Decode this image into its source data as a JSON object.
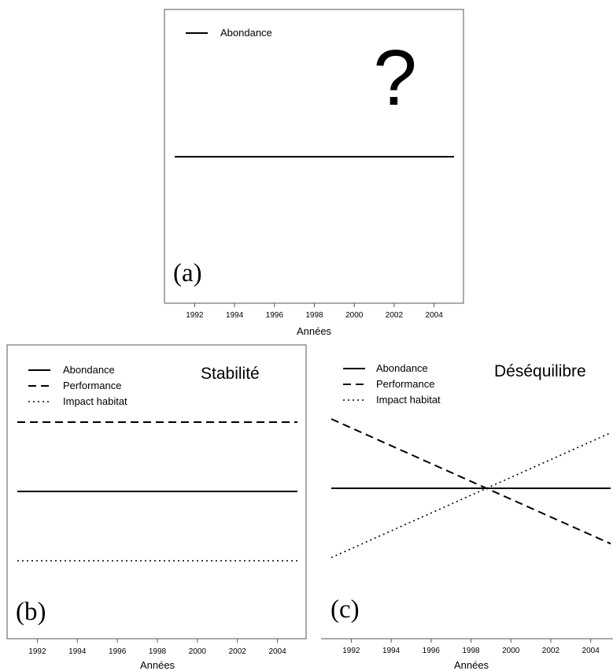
{
  "chart_data": [
    {
      "type": "line",
      "panel_label": "(a)",
      "annotation": "?",
      "title": "",
      "xlabel": "Années",
      "ylabel": "",
      "xlim": [
        1991,
        2005
      ],
      "ylim": [
        0,
        2
      ],
      "xticks": [
        1992,
        1994,
        1996,
        1998,
        2000,
        2002,
        2004
      ],
      "legend_position": "top-left",
      "series": [
        {
          "name": "Abondance",
          "style": "solid",
          "x": [
            1991,
            2005
          ],
          "values": [
            1,
            1
          ]
        }
      ]
    },
    {
      "type": "line",
      "panel_label": "(b)",
      "title": "Stabilité",
      "xlabel": "Années",
      "ylabel": "",
      "xlim": [
        1991,
        2005
      ],
      "ylim": [
        0,
        2
      ],
      "xticks": [
        1992,
        1994,
        1996,
        1998,
        2000,
        2002,
        2004
      ],
      "legend_position": "top-left",
      "series": [
        {
          "name": "Abondance",
          "style": "solid",
          "x": [
            1991,
            2005
          ],
          "values": [
            1,
            1
          ]
        },
        {
          "name": "Performance",
          "style": "dashed",
          "x": [
            1991,
            2005
          ],
          "values": [
            1.5,
            1.5
          ]
        },
        {
          "name": "Impact habitat",
          "style": "dotted",
          "x": [
            1991,
            2005
          ],
          "values": [
            0.5,
            0.5
          ]
        }
      ]
    },
    {
      "type": "line",
      "panel_label": "(c)",
      "title": "Déséquilibre",
      "xlabel": "Années",
      "ylabel": "",
      "xlim": [
        1991,
        2005
      ],
      "ylim": [
        0,
        2
      ],
      "xticks": [
        1992,
        1994,
        1996,
        1998,
        2000,
        2002,
        2004
      ],
      "legend_position": "top-left",
      "series": [
        {
          "name": "Abondance",
          "style": "solid",
          "x": [
            1991,
            2005
          ],
          "values": [
            1,
            1
          ]
        },
        {
          "name": "Performance",
          "style": "dashed",
          "x": [
            1991,
            2005
          ],
          "values": [
            1.5,
            0.6
          ]
        },
        {
          "name": "Impact habitat",
          "style": "dotted",
          "x": [
            1991,
            2005
          ],
          "values": [
            0.5,
            1.4
          ]
        }
      ]
    }
  ]
}
